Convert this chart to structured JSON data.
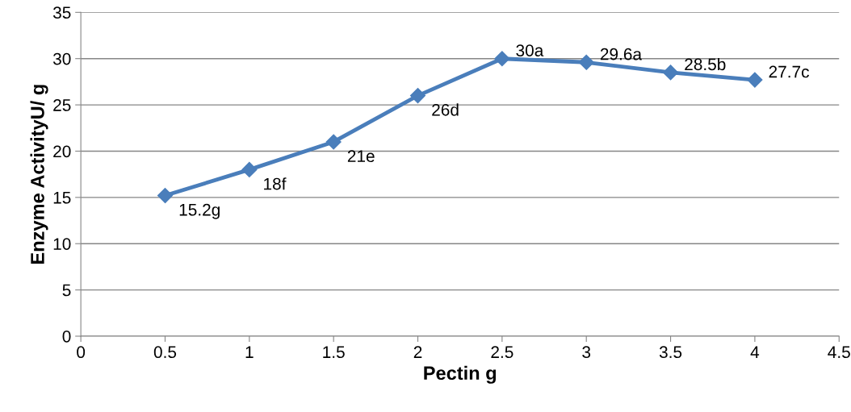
{
  "chart_data": {
    "type": "line",
    "xlabel": "Pectin g",
    "ylabel": "Enzyme ActivityU/ g",
    "x": [
      0.5,
      1,
      1.5,
      2,
      2.5,
      3,
      3.5,
      4
    ],
    "series": [
      {
        "color": "#4a7ebb",
        "values": [
          15.2,
          18,
          21,
          26,
          30,
          29.6,
          28.5,
          27.7
        ],
        "value_labels": [
          "15.2g",
          "18f",
          "21e",
          "26d",
          "30a",
          "29.6a",
          "28.5b",
          "27.7c"
        ]
      }
    ],
    "xlim": [
      0,
      4.5
    ],
    "xticks": [
      0,
      0.5,
      1,
      1.5,
      2,
      2.5,
      3,
      3.5,
      4,
      4.5
    ],
    "ylim": [
      0,
      35
    ],
    "yticks": [
      0,
      5,
      10,
      15,
      20,
      25,
      30,
      35
    ],
    "grid": "y",
    "marker": "diamond",
    "line_style": "solid",
    "legend": false
  }
}
